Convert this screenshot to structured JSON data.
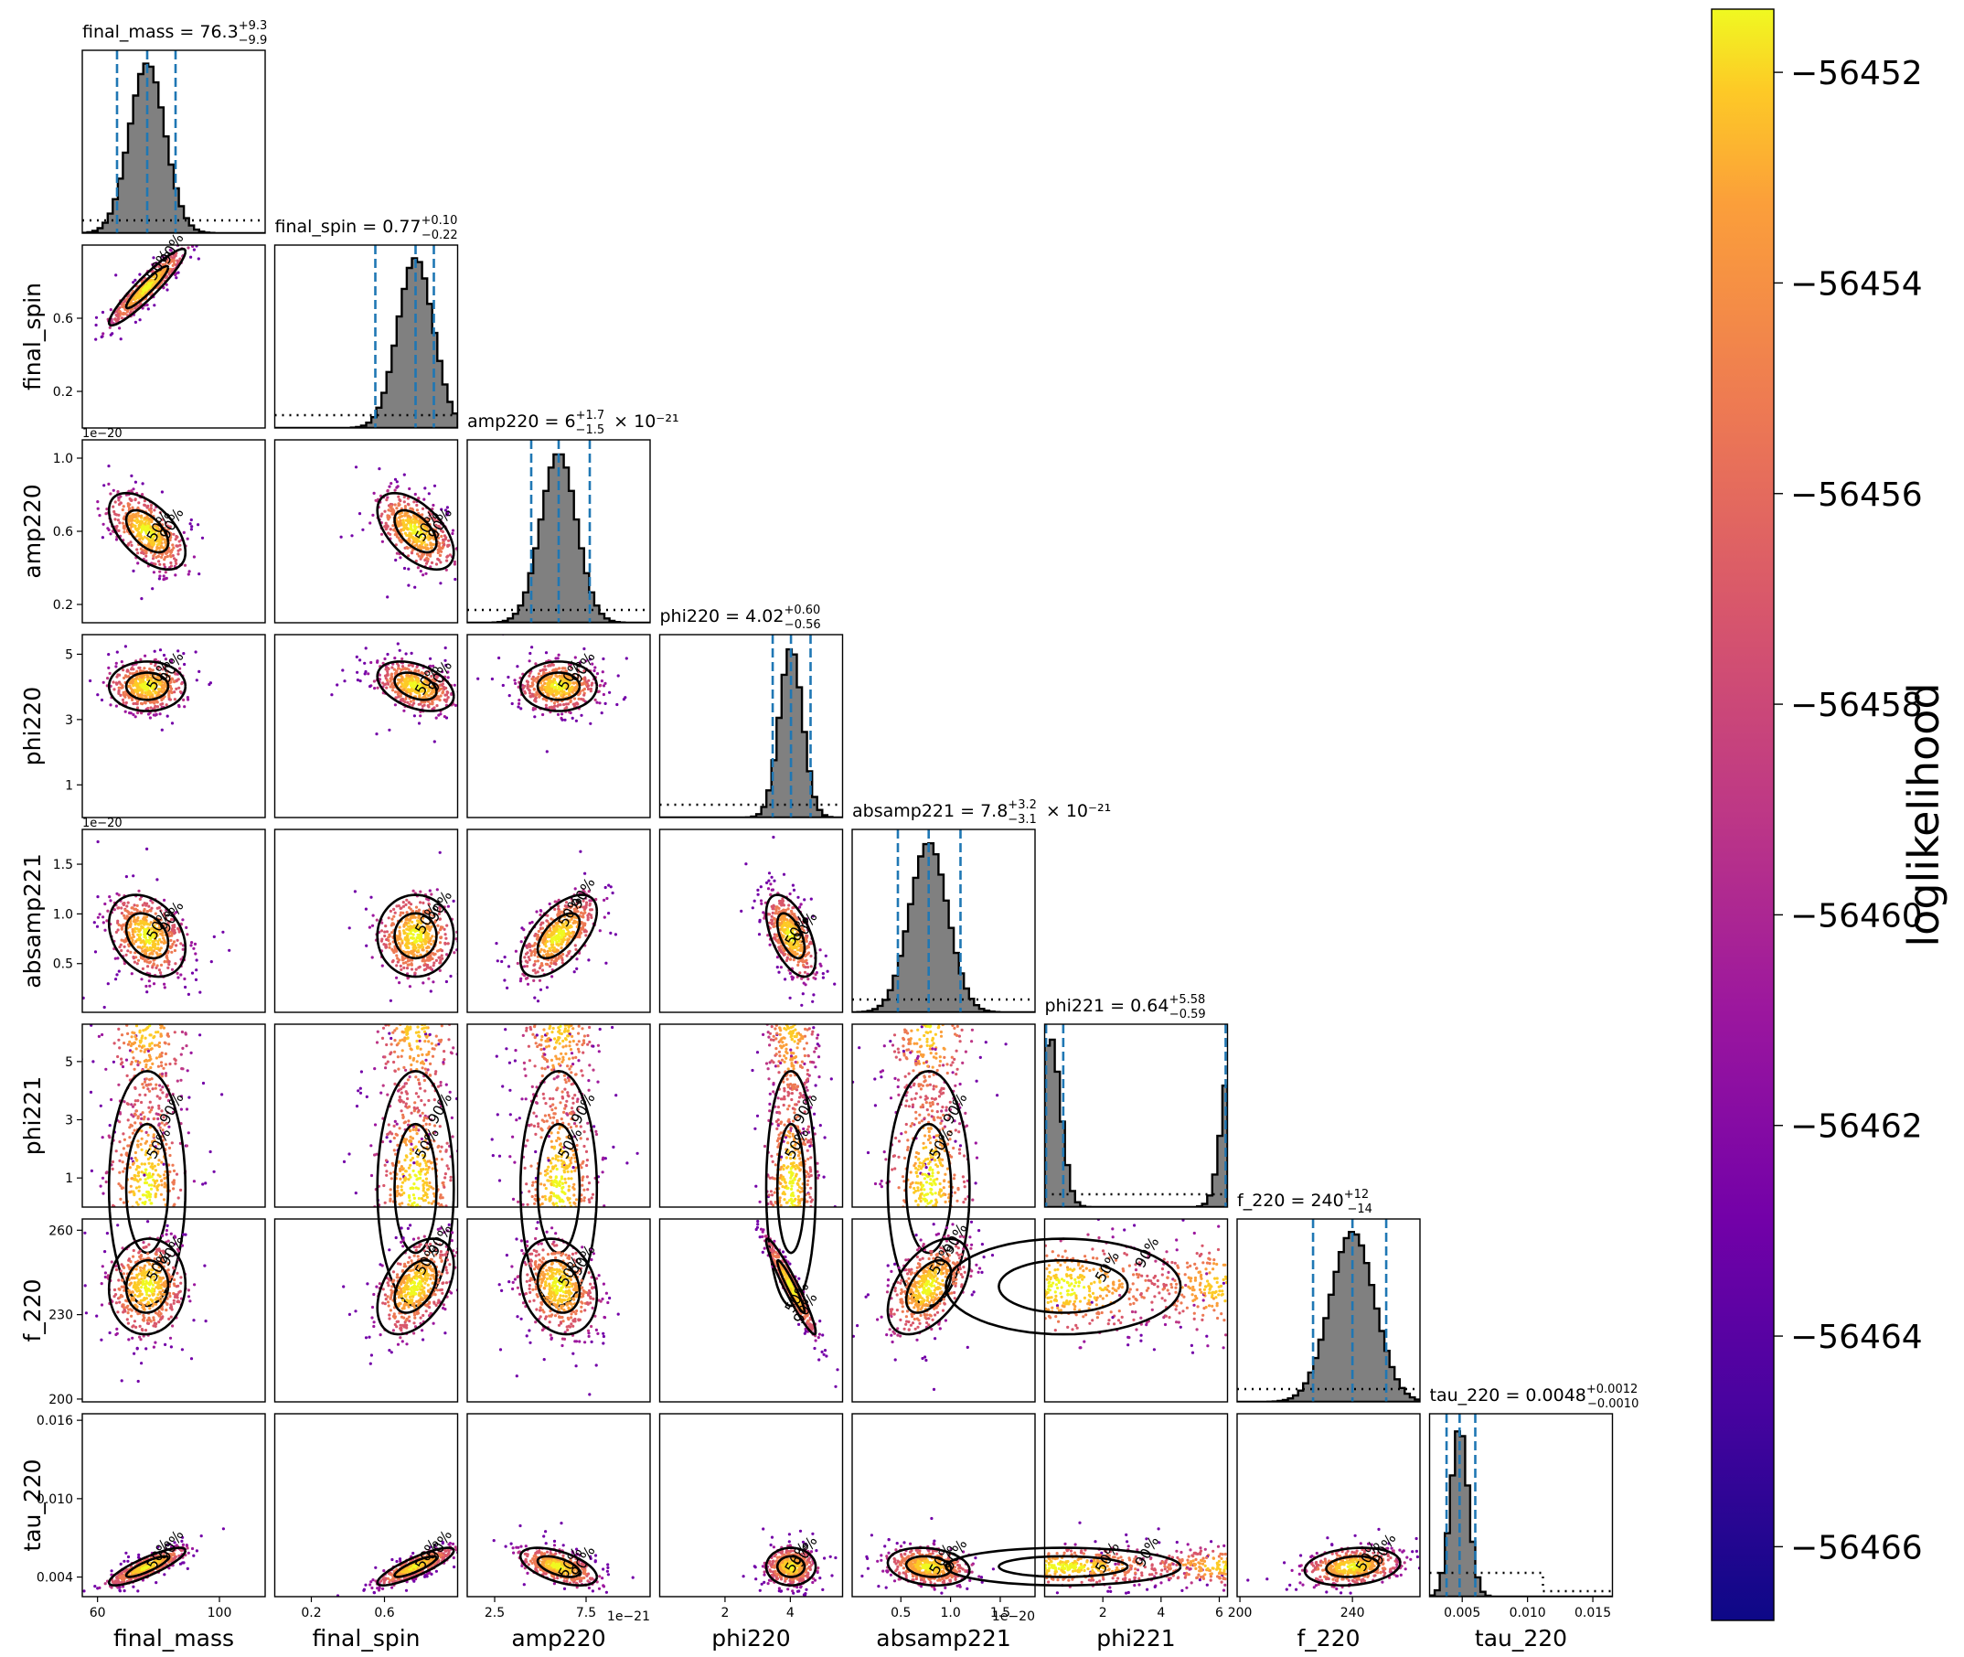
{
  "chart_data": {
    "type": "scatter",
    "subtype": "corner-plot",
    "parameters": [
      {
        "key": "final_mass",
        "label": "final_mass",
        "range": [
          55,
          115
        ],
        "ticks": [
          60,
          100
        ],
        "tick_labels": [
          "60",
          "100"
        ],
        "offset_text": "",
        "title": {
          "prefix": "final_mass = ",
          "median": "76.3",
          "plus": "+9.3",
          "minus": "−9.9",
          "suffix": ""
        },
        "median": 76.3,
        "plus": 9.3,
        "minus": 9.9,
        "prior": "uniform"
      },
      {
        "key": "final_spin",
        "label": "final_spin",
        "range": [
          0.0,
          1.0
        ],
        "ticks": [
          0.2,
          0.6
        ],
        "tick_labels": [
          "0.2",
          "0.6"
        ],
        "offset_text": "",
        "title": {
          "prefix": "final_spin = ",
          "median": "0.77",
          "plus": "+0.10",
          "minus": "−0.22",
          "suffix": ""
        },
        "median": 0.77,
        "plus": 0.1,
        "minus": 0.22,
        "prior": "uniform"
      },
      {
        "key": "amp220",
        "label": "amp220",
        "range": [
          1e-21,
          1.1e-20
        ],
        "ticks": [
          2.5e-21,
          7.5e-21
        ],
        "tick_labels": [
          "2.5",
          "7.5"
        ],
        "offset_text": "1e−21",
        "title": {
          "prefix": "amp220 = ",
          "median": "6",
          "plus": "+1.7",
          "minus": "−1.5",
          "suffix": " × 10⁻²¹"
        },
        "median": 6e-21,
        "plus": 1.7e-21,
        "minus": 1.5e-21,
        "prior": "uniform"
      },
      {
        "key": "phi220",
        "label": "phi220",
        "range": [
          0,
          5.6
        ],
        "ticks": [
          2,
          4
        ],
        "tick_labels": [
          "2",
          "4"
        ],
        "offset_text": "",
        "title": {
          "prefix": "phi220 = ",
          "median": "4.02",
          "plus": "+0.60",
          "minus": "−0.56",
          "suffix": ""
        },
        "median": 4.02,
        "plus": 0.6,
        "minus": 0.56,
        "prior": "uniform"
      },
      {
        "key": "absamp221",
        "label": "absamp221",
        "range": [
          1e-22,
          1.85e-20
        ],
        "ticks": [
          5e-21,
          1e-20,
          1.5e-20
        ],
        "tick_labels": [
          "0.5",
          "1.0",
          "1.5"
        ],
        "offset_text": "1e−20",
        "title": {
          "prefix": "absamp221 = ",
          "median": "7.8",
          "plus": "+3.2",
          "minus": "−3.1",
          "suffix": " × 10⁻²¹"
        },
        "median": 7.8e-21,
        "plus": 3.2e-21,
        "minus": 3.1e-21,
        "prior": "uniform"
      },
      {
        "key": "phi221",
        "label": "phi221",
        "range": [
          0,
          6.283
        ],
        "ticks": [
          2,
          4,
          6
        ],
        "tick_labels": [
          "2",
          "4",
          "6"
        ],
        "offset_text": "",
        "title": {
          "prefix": "phi221 = ",
          "median": "0.64",
          "plus": "+5.58",
          "minus": "−0.59",
          "suffix": ""
        },
        "median": 0.64,
        "plus": 5.58,
        "minus": 0.59,
        "prior": "uniform"
      },
      {
        "key": "f_220",
        "label": "f_220",
        "range": [
          199,
          264
        ],
        "ticks": [
          200,
          240
        ],
        "tick_labels": [
          "200",
          "240"
        ],
        "offset_text": "",
        "title": {
          "prefix": "f_220 = ",
          "median": "240",
          "plus": "+12",
          "minus": "−14",
          "suffix": ""
        },
        "median": 240,
        "plus": 12,
        "minus": 14,
        "prior": "uniform"
      },
      {
        "key": "tau_220",
        "label": "tau_220",
        "range": [
          0.0025,
          0.0165
        ],
        "ticks": [
          0.005,
          0.01,
          0.015
        ],
        "tick_labels": [
          "0.005",
          "0.010",
          "0.015"
        ],
        "offset_text": "",
        "title": {
          "prefix": "tau_220 = ",
          "median": "0.0048",
          "plus": "+0.0012",
          "minus": "−0.0010",
          "suffix": ""
        },
        "median": 0.0048,
        "plus": 0.0012,
        "minus": 0.001,
        "prior": "step"
      }
    ],
    "y_axis_ticks": {
      "final_spin": {
        "ticks": [
          0.2,
          0.6
        ],
        "labels": [
          "0.2",
          "0.6"
        ]
      },
      "amp220": {
        "ticks": [
          2e-21,
          6e-21,
          1e-20
        ],
        "labels": [
          "0.2",
          "0.6",
          "1.0"
        ],
        "offset_text": "1e−20"
      },
      "phi220": {
        "ticks": [
          1,
          3,
          5
        ],
        "labels": [
          "1",
          "3",
          "5"
        ]
      },
      "absamp221": {
        "ticks": [
          5e-21,
          1e-20,
          1.5e-20
        ],
        "labels": [
          "0.5",
          "1.0",
          "1.5"
        ],
        "offset_text": "1e−20"
      },
      "phi221": {
        "ticks": [
          1,
          3,
          5
        ],
        "labels": [
          "1",
          "3",
          "5"
        ]
      },
      "f_220": {
        "ticks": [
          200,
          230,
          260
        ],
        "labels": [
          "200",
          "230",
          "260"
        ]
      },
      "tau_220": {
        "ticks": [
          0.004,
          0.01,
          0.016
        ],
        "labels": [
          "0.004",
          "0.010",
          "0.016"
        ]
      }
    },
    "correlations": {
      "final_spin|final_mass": 0.93,
      "amp220|final_mass": -0.55,
      "amp220|final_spin": -0.55,
      "phi220|final_spin": -0.4,
      "absamp221|final_mass": -0.3,
      "absamp221|amp220": 0.6,
      "absamp221|phi220": -0.55,
      "f_220|final_mass": 0.05,
      "f_220|final_spin": 0.45,
      "f_220|amp220": -0.2,
      "f_220|phi220": -0.95,
      "f_220|absamp221": 0.5,
      "tau_220|final_mass": 0.85,
      "tau_220|final_spin": 0.85,
      "tau_220|amp220": -0.55,
      "tau_220|absamp221": -0.2,
      "tau_220|f_220": 0.2
    },
    "contour_levels": [
      "50%",
      "90%"
    ],
    "credible_interval_lines": "dashed, median and 90% bounds",
    "colorbar": {
      "label": "loglikelihood",
      "range": [
        -56466.7,
        -56451.4
      ],
      "ticks": [
        -56452,
        -56454,
        -56456,
        -56458,
        -56460,
        -56462,
        -56464,
        -56466
      ],
      "tick_labels": [
        "−56452",
        "−56454",
        "−56456",
        "−56458",
        "−56460",
        "−56462",
        "−56464",
        "−56466"
      ],
      "colormap": "plasma"
    },
    "colors": {
      "histogram_fill": "#808080",
      "interval_line": "#1f77b4",
      "contour": "#000000"
    },
    "grid": false
  }
}
